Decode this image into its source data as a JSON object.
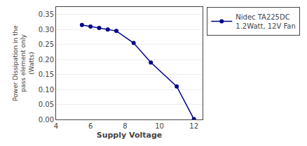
{
  "chart_data": {
    "type": "line",
    "xlabel": "Supply Voltage",
    "ylabel": "Power Dissipation in the\npass element only\n(Watts)",
    "x": [
      5.5,
      6.0,
      6.5,
      7.0,
      7.5,
      8.5,
      9.5,
      11.0,
      12.0
    ],
    "series": [
      {
        "name": "Nidec TA225DC\n1.2Watt, 12V Fan",
        "color": "#00008B",
        "marker": "circle",
        "values": [
          0.315,
          0.31,
          0.305,
          0.3,
          0.295,
          0.255,
          0.19,
          0.11,
          0.001
        ]
      }
    ],
    "xlim": [
      4,
      12.5
    ],
    "ylim": [
      0,
      0.375
    ],
    "xticks": [
      4,
      6,
      8,
      10,
      12
    ],
    "yticks": [
      {
        "value": 0.0,
        "label": "0.00"
      },
      {
        "value": 0.05,
        "label": "0.05"
      },
      {
        "value": 0.1,
        "label": "0.10"
      },
      {
        "value": 0.15,
        "label": "0.15"
      },
      {
        "value": 0.2,
        "label": "0.20"
      },
      {
        "value": 0.25,
        "label": "0.25"
      },
      {
        "value": 0.3,
        "label": "0.30"
      },
      {
        "value": 0.35,
        "label": "0.35"
      }
    ],
    "grid": "y",
    "legend": "right"
  }
}
